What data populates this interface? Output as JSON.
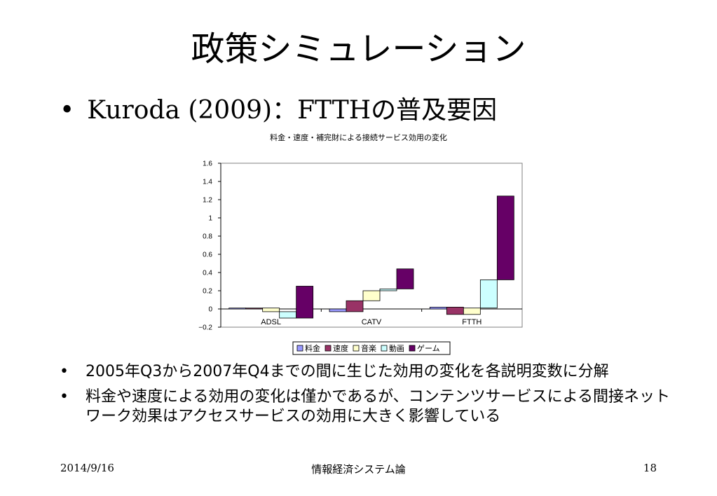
{
  "slide": {
    "title": "政策シミュレーション",
    "bullet_main": "Kuroda (2009)：FTTHの普及要因",
    "sub_bullets": [
      "2005年Q3から2007年Q4までの間に生じた効用の変化を各説明変数に分解",
      "料金や速度による効用の変化は僅かであるが、コンテンツサービスによる間接ネットワーク効果はアクセスサービスの効用に大きく影響している"
    ],
    "footer": {
      "date": "2014/9/16",
      "center": "情報経済システム論",
      "page": "18"
    }
  },
  "chart_data": {
    "type": "bar",
    "subtype": "waterfall",
    "title": "料金・速度・補完財による接続サービス効用の変化",
    "categories": [
      "ADSL",
      "CATV",
      "FTTH"
    ],
    "ylim": [
      -0.2,
      1.6
    ],
    "yticks": [
      "1.6",
      "1.4",
      "1.2",
      "1",
      "0.8",
      "0.6",
      "0.4",
      "0.2",
      "0",
      "−0.2"
    ],
    "legend_position": "bottom",
    "series": [
      {
        "name": "料金",
        "color": "#9999ff",
        "values": [
          0.01,
          -0.03,
          0.02
        ]
      },
      {
        "name": "速度",
        "color": "#993366",
        "values": [
          0.0,
          0.12,
          -0.08
        ]
      },
      {
        "name": "音楽",
        "color": "#ffffcc",
        "values": [
          -0.04,
          0.11,
          0.07
        ]
      },
      {
        "name": "動画",
        "color": "#ccffff",
        "values": [
          -0.07,
          0.02,
          0.31
        ]
      },
      {
        "name": "ゲーム",
        "color": "#660066",
        "values": [
          0.35,
          0.22,
          0.92
        ]
      }
    ]
  }
}
